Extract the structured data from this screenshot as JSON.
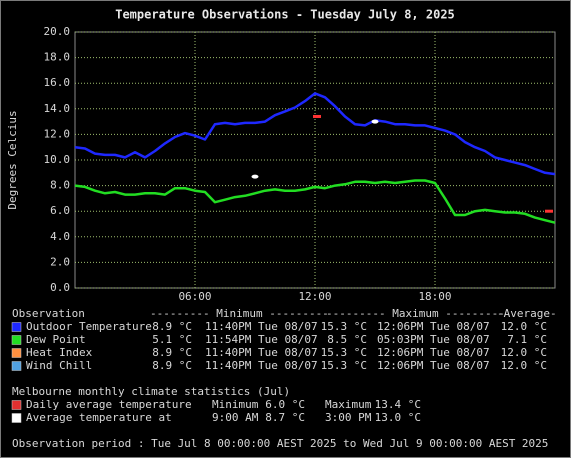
{
  "chart_data": {
    "type": "line",
    "title": "Temperature Observations - Tuesday July 8, 2025",
    "y_label": "Degrees Celcius",
    "x": [
      0,
      0.5,
      1,
      1.5,
      2,
      2.5,
      3,
      3.5,
      4,
      4.5,
      5,
      5.5,
      6,
      6.5,
      7,
      7.5,
      8,
      8.5,
      9,
      9.5,
      10,
      10.5,
      11,
      11.5,
      12,
      12.5,
      13,
      13.5,
      14,
      14.5,
      15,
      15.5,
      16,
      16.5,
      17,
      17.5,
      18,
      18.5,
      19,
      19.5,
      20,
      20.5,
      21,
      21.5,
      22,
      22.5,
      23,
      23.5,
      24
    ],
    "series": [
      {
        "name": "Outdoor Temperature",
        "color": "#1e28ff",
        "values": [
          11.0,
          10.9,
          10.5,
          10.4,
          10.4,
          10.2,
          10.6,
          10.2,
          10.7,
          11.3,
          11.8,
          12.1,
          11.9,
          11.6,
          12.8,
          12.9,
          12.8,
          12.9,
          12.9,
          13.0,
          13.5,
          13.8,
          14.1,
          14.6,
          15.2,
          14.9,
          14.2,
          13.4,
          12.8,
          12.7,
          13.1,
          13.0,
          12.8,
          12.8,
          12.7,
          12.7,
          12.5,
          12.3,
          12.0,
          11.4,
          11.0,
          10.7,
          10.2,
          10.0,
          9.8,
          9.6,
          9.3,
          9.0,
          8.9
        ]
      },
      {
        "name": "Dew Point",
        "color": "#22dd22",
        "values": [
          8.0,
          7.9,
          7.6,
          7.4,
          7.5,
          7.3,
          7.3,
          7.4,
          7.4,
          7.3,
          7.8,
          7.8,
          7.6,
          7.5,
          6.7,
          6.9,
          7.1,
          7.2,
          7.4,
          7.6,
          7.7,
          7.6,
          7.6,
          7.7,
          7.9,
          7.8,
          8.0,
          8.1,
          8.3,
          8.3,
          8.2,
          8.3,
          8.2,
          8.3,
          8.4,
          8.4,
          8.2,
          7.0,
          5.7,
          5.7,
          6.0,
          6.1,
          6.0,
          5.9,
          5.9,
          5.8,
          5.5,
          5.3,
          5.1
        ]
      }
    ],
    "markers": [
      {
        "x": 12.1,
        "y": 13.4,
        "color": "#ff3333",
        "shape": "dash"
      },
      {
        "x": 23.7,
        "y": 6.0,
        "color": "#ff3333",
        "shape": "dash"
      },
      {
        "x": 9,
        "y": 8.7,
        "color": "#ffffff",
        "shape": "dot"
      },
      {
        "x": 15,
        "y": 13.0,
        "color": "#ffffff",
        "shape": "dot"
      }
    ],
    "xlim": [
      0,
      24
    ],
    "xticks": [
      {
        "value": 6,
        "label": "06:00"
      },
      {
        "value": 12,
        "label": "12:00"
      },
      {
        "value": 18,
        "label": "18:00"
      }
    ],
    "ylim": [
      0,
      20
    ],
    "yticks": [
      {
        "value": 0,
        "label": "0.0"
      },
      {
        "value": 2,
        "label": "2.0"
      },
      {
        "value": 4,
        "label": "4.0"
      },
      {
        "value": 6,
        "label": "6.0"
      },
      {
        "value": 8,
        "label": "8.0"
      },
      {
        "value": 10,
        "label": "10.0"
      },
      {
        "value": 12,
        "label": "12.0"
      },
      {
        "value": 14,
        "label": "14.0"
      },
      {
        "value": 16,
        "label": "16.0"
      },
      {
        "value": 18,
        "label": "18.0"
      },
      {
        "value": 20,
        "label": "20.0"
      }
    ],
    "grid": true
  },
  "summary": {
    "header": [
      "Observation",
      "--------- Minimum ---------",
      "--------- Maximum ---------",
      "-Average-"
    ],
    "rows": [
      {
        "min": "8.9 °C",
        "min_time": "11:40PM Tue 08/07",
        "max": "15.3 °C",
        "max_time": "12:06PM Tue 08/07",
        "avg": "12.0 °C"
      },
      {
        "min": "5.1 °C",
        "min_time": "11:54PM Tue 08/07",
        "max": "8.5 °C",
        "max_time": "05:03PM Tue 08/07",
        "avg": "7.1 °C"
      },
      {
        "name": "Heat Index",
        "color": "#ff9040",
        "min": "8.9 °C",
        "min_time": "11:40PM Tue 08/07",
        "max": "15.3 °C",
        "max_time": "12:06PM Tue 08/07",
        "avg": "12.0 °C"
      },
      {
        "name": "Wind Chill",
        "color": "#50a0e0",
        "min": "8.9 °C",
        "min_time": "11:40PM Tue 08/07",
        "max": "15.3 °C",
        "max_time": "12:06PM Tue 08/07",
        "avg": "12.0 °C"
      }
    ]
  },
  "climate": {
    "title": "Melbourne monthly climate statistics (Jul)",
    "rows": [
      {
        "label": "Daily average temperature",
        "color": "#e03030",
        "a": "Minimum",
        "a_value": "6.0 °C",
        "b": "Maximum",
        "b_value": "13.4 °C"
      },
      {
        "label": "Average temperature at",
        "color": "#ffffff",
        "a": "9:00 AM",
        "a_value": "8.7 °C",
        "b": "3:00 PM",
        "b_value": "13.0 °C"
      }
    ]
  },
  "footer": "Observation period : Tue Jul 8 00:00:00 AEST 2025 to Wed Jul 9 00:00:00 AEST 2025"
}
